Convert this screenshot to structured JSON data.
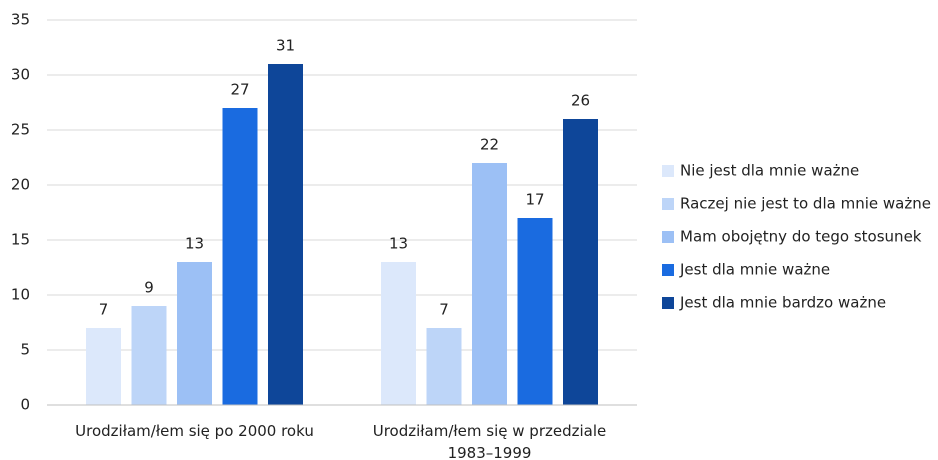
{
  "chart_data": {
    "type": "bar",
    "categories": [
      "Urodziłam/łem się po 2000 roku",
      "Urodziłam/łem się w przedziale 1983–1999"
    ],
    "series": [
      {
        "name": "Nie jest dla mnie ważne",
        "color": "#dce8fb",
        "values": [
          7,
          13
        ]
      },
      {
        "name": "Raczej nie jest to dla mnie ważne",
        "color": "#bdd5f8",
        "values": [
          9,
          7
        ]
      },
      {
        "name": "Mam obojętny do tego stosunek",
        "color": "#9cc0f5",
        "values": [
          13,
          22
        ]
      },
      {
        "name": "Jest dla mnie ważne",
        "color": "#1a6be0",
        "values": [
          27,
          17
        ]
      },
      {
        "name": "Jest dla mnie bardzo ważne",
        "color": "#0e4699",
        "values": [
          31,
          26
        ]
      }
    ],
    "ylim": [
      0,
      35
    ],
    "yticks": [
      0,
      5,
      10,
      15,
      20,
      25,
      30,
      35
    ],
    "grid": true,
    "legend": "right"
  }
}
